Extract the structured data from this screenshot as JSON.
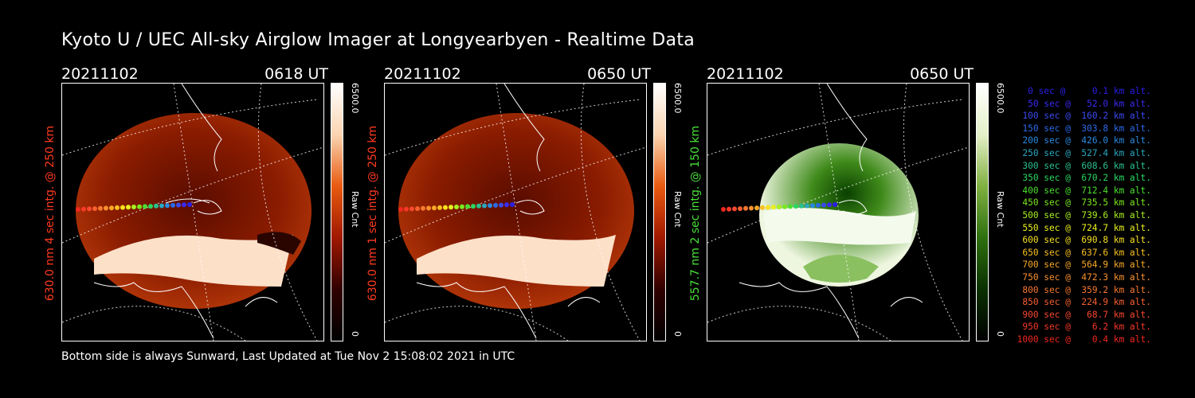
{
  "title": "Kyoto U / UEC All-sky Airglow Imager at Longyearbyen - Realtime Data",
  "footer": "Bottom side is always Sunward, Last Updated at Tue Nov  2 15:08:02 2021 in UTC",
  "panels": [
    {
      "date": "20211102",
      "time": "0618 UT",
      "ylabel": "630.0 nm  4 sec intg. @ 250 km",
      "label_color": "#ff3a1f",
      "colorbar": {
        "max": "6500.0",
        "min": "0",
        "unit": "Raw Cnt"
      },
      "theme": "red"
    },
    {
      "date": "20211102",
      "time": "0650 UT",
      "ylabel": "630.0 nm  1 sec intg. @ 250 km",
      "label_color": "#ff3a1f",
      "colorbar": {
        "max": "6500.0",
        "min": "0",
        "unit": "Raw Cnt"
      },
      "theme": "red"
    },
    {
      "date": "20211102",
      "time": "0650 UT",
      "ylabel": "557.7 nm  2 sec intg. @ 150 km",
      "label_color": "#49e03a",
      "colorbar": {
        "max": "6500.0",
        "min": "0",
        "unit": "Raw Cnt"
      },
      "theme": "green"
    }
  ],
  "legend": [
    {
      "text": "   0 sec @     0.1 km alt.",
      "color": "#2a1fe6"
    },
    {
      "text": "  50 sec @   52.0 km alt.",
      "color": "#3a2af0"
    },
    {
      "text": " 100 sec @  160.2 km alt.",
      "color": "#3a4af0"
    },
    {
      "text": " 150 sec @  303.8 km alt.",
      "color": "#2a6ae8"
    },
    {
      "text": " 200 sec @  426.0 km alt.",
      "color": "#2a8ae0"
    },
    {
      "text": " 250 sec @  527.4 km alt.",
      "color": "#2aa6c0"
    },
    {
      "text": " 300 sec @  608.6 km alt.",
      "color": "#2ac090"
    },
    {
      "text": " 350 sec @  670.2 km alt.",
      "color": "#2ad860"
    },
    {
      "text": " 400 sec @  712.4 km alt.",
      "color": "#4ae030"
    },
    {
      "text": " 450 sec @  735.5 km alt.",
      "color": "#7ae820"
    },
    {
      "text": " 500 sec @  739.6 km alt.",
      "color": "#a8f020"
    },
    {
      "text": " 550 sec @  724.7 km alt.",
      "color": "#e8f020"
    },
    {
      "text": " 600 sec @  690.8 km alt.",
      "color": "#f8e020"
    },
    {
      "text": " 650 sec @  637.6 km alt.",
      "color": "#f8c020"
    },
    {
      "text": " 700 sec @  564.9 km alt.",
      "color": "#f8a828"
    },
    {
      "text": " 750 sec @  472.3 km alt.",
      "color": "#f89030"
    },
    {
      "text": " 800 sec @  359.2 km alt.",
      "color": "#f87830"
    },
    {
      "text": " 850 sec @  224.9 km alt.",
      "color": "#f86030"
    },
    {
      "text": " 900 sec @   68.7 km alt.",
      "color": "#f84830"
    },
    {
      "text": " 950 sec @    6.2 km alt.",
      "color": "#f83828"
    },
    {
      "text": "1000 sec @    0.4 km alt.",
      "color": "#f02820"
    }
  ]
}
